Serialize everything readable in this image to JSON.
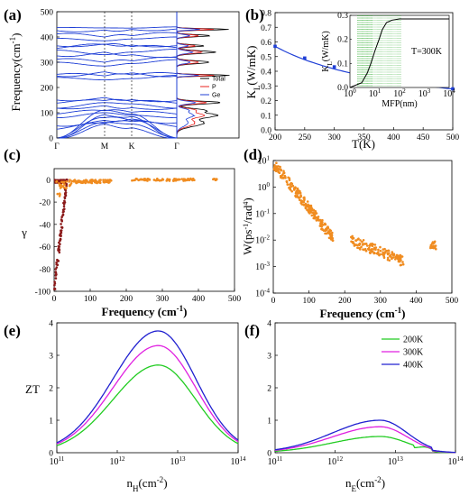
{
  "chart_data": [
    {
      "id": "a",
      "panel_label": "(a)",
      "type": "line",
      "ylabel": "Frequency(cm",
      "ylabel_sup": "-1",
      "ylabel_close": ")",
      "ylim": [
        0,
        500
      ],
      "yticks": [
        "0",
        "100",
        "200",
        "300",
        "400",
        "500"
      ],
      "xticks": [
        "Γ",
        "M",
        "K",
        "Γ"
      ],
      "dos_legend": [
        {
          "name": "Total",
          "color": "#000000"
        },
        {
          "name": "P",
          "color": "#e8201e"
        },
        {
          "name": "Ge",
          "color": "#1f3fd6"
        }
      ]
    },
    {
      "id": "b",
      "panel_label": "(b)",
      "type": "line",
      "x": [
        200,
        250,
        300,
        350,
        400,
        450,
        500
      ],
      "y": [
        0.57,
        0.49,
        0.43,
        0.38,
        0.34,
        0.31,
        0.28
      ],
      "xlim": [
        200,
        500
      ],
      "ylim": [
        0.0,
        0.8
      ],
      "xticks": [
        "200",
        "250",
        "300",
        "350",
        "400",
        "450",
        "500"
      ],
      "yticks": [
        "0.0",
        "0.1",
        "0.2",
        "0.3",
        "0.4",
        "0.5",
        "0.6",
        "0.7",
        "0.8"
      ],
      "xlabel": "T(K)",
      "ylabel_main": "K",
      "ylabel_sub": "L",
      "ylabel_rest": "(W/mK)",
      "color": "#1f3fd6",
      "inset": {
        "ylabel_main": "K",
        "ylabel_sub": "L",
        "ylabel_rest": "(W/mK)",
        "xlabel": "MFP(nm)",
        "annotation": "T=300K",
        "ylim": [
          0.0,
          0.3
        ],
        "yticks": [
          "0.0",
          "0.1",
          "0.2",
          "0.3"
        ],
        "xlog_ticks": [
          "10",
          "10",
          "10",
          "10",
          "10"
        ],
        "xlog_exps": [
          "0",
          "1",
          "2",
          "3",
          "4"
        ],
        "x": [
          1,
          3,
          5,
          7,
          10,
          15,
          20,
          30,
          50,
          100,
          1000,
          10000
        ],
        "y": [
          0.0,
          0.02,
          0.06,
          0.1,
          0.15,
          0.2,
          0.24,
          0.27,
          0.28,
          0.285,
          0.285,
          0.285
        ]
      }
    },
    {
      "id": "c",
      "panel_label": "(c)",
      "type": "scatter",
      "xlim": [
        0,
        500
      ],
      "ylim": [
        -100,
        10
      ],
      "xticks": [
        "0",
        "100",
        "200",
        "300",
        "400",
        "500"
      ],
      "yticks": [
        "0",
        "-20",
        "-40",
        "-60",
        "-80",
        "-100"
      ],
      "xlabel": "Frequency (cm",
      "xlabel_sup": "-1",
      "xlabel_close": ")",
      "ylabel": "γ",
      "colors": {
        "acoustic": "#8b1a1a",
        "optical": "#f08c20"
      }
    },
    {
      "id": "d",
      "panel_label": "(d)",
      "type": "scatter",
      "xlim": [
        0,
        500
      ],
      "ylim_log": [
        -4,
        1
      ],
      "xticks": [
        "0",
        "100",
        "200",
        "300",
        "400",
        "500"
      ],
      "yticks": [
        "10",
        "10",
        "10",
        "10",
        "10",
        "10"
      ],
      "yexps": [
        "1",
        "0",
        "-1",
        "-2",
        "-3",
        "-4"
      ],
      "xlabel": "Frequency (cm",
      "xlabel_sup": "-1",
      "xlabel_close": ")",
      "ylabel_main": "W(ps",
      "ylabel_sup1": "-1",
      "ylabel_mid": "/rad",
      "ylabel_sup2": "4",
      "ylabel_close": ")",
      "color": "#f08c20"
    },
    {
      "id": "e",
      "panel_label": "(e)",
      "type": "line",
      "xlog_range": [
        11,
        14
      ],
      "ylim": [
        0,
        4
      ],
      "xticks": [
        "10",
        "10",
        "10",
        "10"
      ],
      "xexps": [
        "11",
        "12",
        "13",
        "14"
      ],
      "yticks": [
        "0",
        "1",
        "2",
        "3",
        "4"
      ],
      "ylabel": "ZT",
      "xlabel_main": "n",
      "xlabel_sub": "H",
      "xlabel_rest": "(cm",
      "xlabel_sup": "-2",
      "xlabel_close": ")",
      "series": [
        {
          "name": "200K",
          "peak": 2.7,
          "color": "#22cc22"
        },
        {
          "name": "300K",
          "peak": 3.3,
          "color": "#e020e0"
        },
        {
          "name": "400K",
          "peak": 3.75,
          "color": "#2020d0"
        }
      ],
      "peak_log_x": 12.68,
      "ends": {
        "200K": [
          0.45,
          0.35
        ],
        "300K": [
          0.55,
          0.45
        ],
        "400K": [
          0.62,
          0.5
        ]
      }
    },
    {
      "id": "f",
      "panel_label": "(f)",
      "type": "line",
      "xlog_range": [
        11,
        14
      ],
      "ylim": [
        0,
        4
      ],
      "xticks": [
        "10",
        "10",
        "10",
        "10"
      ],
      "xexps": [
        "11",
        "12",
        "13",
        "14"
      ],
      "yticks": [
        "0",
        "1",
        "2",
        "3",
        "4"
      ],
      "xlabel_main": "n",
      "xlabel_sub": "E",
      "xlabel_rest": "(cm",
      "xlabel_sup": "-2",
      "xlabel_close": ")",
      "series": [
        {
          "name": "200K",
          "peak": 0.5,
          "color": "#22cc22"
        },
        {
          "name": "300K",
          "peak": 0.8,
          "color": "#e020e0"
        },
        {
          "name": "400K",
          "peak": 1.0,
          "color": "#2020d0"
        }
      ],
      "peak_log_x": 12.75
    }
  ]
}
